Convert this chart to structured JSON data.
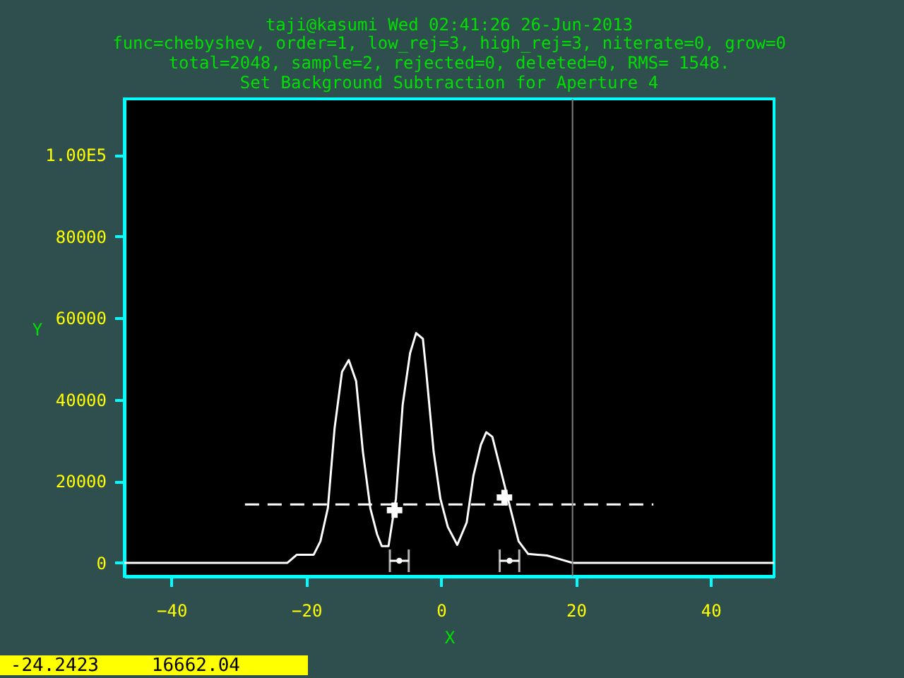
{
  "chart_data": {
    "type": "line",
    "title": "taji@kasumi Wed 02:41:26 26-Jun-2013",
    "subtitle": "func=chebyshev, order=1, low_rej=3, high_rej=3, niterate=0, grow=0\ntotal=2048, sample=2, rejected=0, deleted=0, RMS=  1548.\nSet Background Subtraction for Aperture 4",
    "xlabel": "X",
    "ylabel": "Y",
    "xlim": [
      -47.0,
      49.4
    ],
    "ylim": [
      -3300,
      113700
    ],
    "xticks": [
      -40,
      -20,
      0,
      20,
      40
    ],
    "yticks": [
      0,
      20000,
      40000,
      60000,
      80000,
      {
        "value": 100000,
        "label": "1.00E5"
      }
    ],
    "grid": false,
    "series": [
      {
        "color": "#ffffff",
        "x": [
          -47.0,
          -22.8,
          -21.4,
          -18.9,
          -17.9,
          -16.8,
          -15.8,
          -14.7,
          -13.7,
          -12.6,
          -11.6,
          -10.5,
          -9.5,
          -8.8,
          -7.8,
          -6.7,
          -5.7,
          -4.6,
          -3.7,
          -2.7,
          -2.2,
          -1.1,
          -0.1,
          1.0,
          2.4,
          3.8,
          4.8,
          5.9,
          6.7,
          7.6,
          8.7,
          10.1,
          11.5,
          12.9,
          15.7,
          17.4,
          19.5,
          49.4
        ],
        "values": [
          0,
          0,
          2000,
          2000,
          5300,
          13400,
          33000,
          46800,
          49700,
          44500,
          27200,
          13400,
          7000,
          4100,
          4100,
          15700,
          38700,
          51400,
          56300,
          54900,
          46800,
          27200,
          15700,
          8800,
          4400,
          9900,
          21400,
          28900,
          32000,
          30900,
          23700,
          14500,
          5300,
          2200,
          1800,
          1000,
          0,
          0
        ]
      },
      {
        "type": "line",
        "color": "#ffffff",
        "line_style": "dashed",
        "x": [
          -29.1,
          31.5
        ],
        "values": [
          14300,
          14300
        ]
      },
      {
        "type": "scatter",
        "color": "#ffffff",
        "x": [
          -6.2,
          10.15
        ],
        "values": [
          500,
          500
        ],
        "xerrors": [
          1.4,
          1.45
        ]
      },
      {
        "type": "scatter",
        "color": "#ffffff",
        "marker": "cross",
        "x": [
          -6.9,
          9.4
        ],
        "values": [
          12900,
          16000
        ]
      }
    ],
    "ref_lines": [
      {
        "axis": "x",
        "value": 19.5,
        "color": "#808080"
      }
    ],
    "annotations": [
      "-24.2423",
      "16662.04"
    ]
  }
}
